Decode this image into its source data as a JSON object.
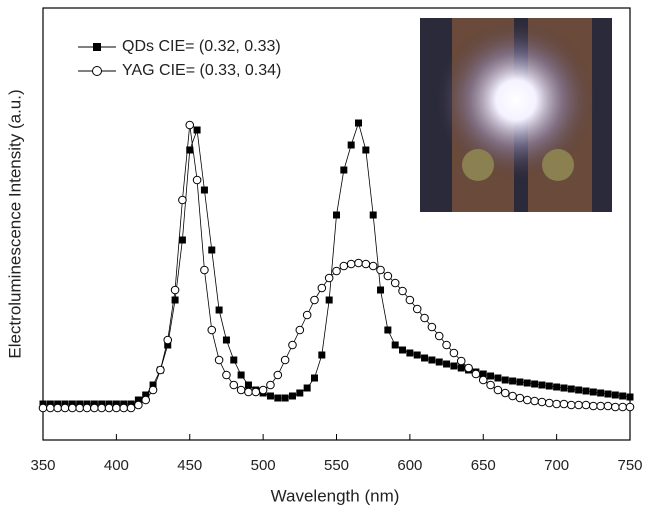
{
  "chart_data": {
    "type": "line",
    "x_label": "Wavelength (nm)",
    "y_label": "Electroluminescence Intensity (a.u.)",
    "x": [
      350,
      355,
      360,
      365,
      370,
      375,
      380,
      385,
      390,
      395,
      400,
      405,
      410,
      415,
      420,
      425,
      430,
      435,
      440,
      445,
      450,
      455,
      460,
      465,
      470,
      475,
      480,
      485,
      490,
      495,
      500,
      505,
      510,
      515,
      520,
      525,
      530,
      535,
      540,
      545,
      550,
      555,
      560,
      565,
      570,
      575,
      580,
      585,
      590,
      595,
      600,
      605,
      610,
      615,
      620,
      625,
      630,
      635,
      640,
      645,
      650,
      655,
      660,
      665,
      670,
      675,
      680,
      685,
      690,
      695,
      700,
      705,
      710,
      715,
      720,
      725,
      730,
      735,
      740,
      745,
      750
    ],
    "series": [
      {
        "name": "QDs CIE= (0.32, 0.33)",
        "color": "#000000",
        "marker": "square",
        "values": [
          36,
          36,
          36,
          36,
          36,
          36,
          36,
          36,
          36,
          36,
          36,
          36,
          36,
          40,
          45,
          55,
          70,
          95,
          140,
          200,
          290,
          310,
          250,
          190,
          130,
          100,
          80,
          65,
          55,
          50,
          47,
          44,
          42,
          42,
          44,
          47,
          52,
          62,
          85,
          140,
          225,
          270,
          295,
          317,
          290,
          225,
          150,
          110,
          95,
          90,
          87,
          85,
          82,
          80,
          78,
          76,
          74,
          72,
          70,
          68,
          66,
          64,
          62,
          60,
          59,
          58,
          57,
          56,
          55,
          54,
          53,
          52,
          51,
          50,
          49,
          48,
          47,
          46,
          45,
          44,
          43
        ]
      },
      {
        "name": "YAG CIE= (0.33, 0.34)",
        "color": "#000000",
        "marker": "circle",
        "values": [
          32,
          32,
          32,
          32,
          32,
          32,
          32,
          32,
          32,
          32,
          32,
          32,
          32,
          35,
          40,
          50,
          70,
          100,
          150,
          240,
          315,
          260,
          170,
          110,
          80,
          65,
          55,
          50,
          48,
          48,
          50,
          55,
          65,
          80,
          95,
          110,
          125,
          140,
          152,
          162,
          169,
          174,
          176,
          177,
          176,
          174,
          170,
          164,
          157,
          149,
          140,
          131,
          122,
          113,
          104,
          95,
          87,
          79,
          72,
          66,
          60,
          55,
          50,
          47,
          44,
          42,
          40,
          39,
          38,
          37,
          36,
          36,
          35,
          35,
          35,
          34,
          34,
          34,
          33,
          33,
          33
        ]
      }
    ],
    "xlim": [
      350,
      750
    ],
    "xticks": [
      350,
      400,
      450,
      500,
      550,
      600,
      650,
      700,
      750
    ],
    "ylim": [
      0,
      432
    ],
    "legend": "top-left"
  }
}
